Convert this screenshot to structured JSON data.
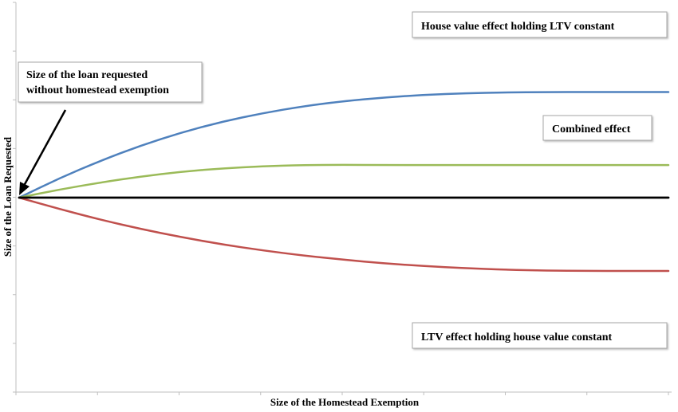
{
  "chart_data": {
    "type": "line",
    "title": "",
    "xlabel": "Size of the Homestead Exemption",
    "ylabel": "Size of the Loan Requested",
    "xlim": [
      0,
      8
    ],
    "ylim": [
      -4,
      4
    ],
    "grid": false,
    "x": [
      0,
      0.5,
      1,
      1.5,
      2,
      2.5,
      3,
      3.5,
      4,
      4.5,
      5,
      5.5,
      6,
      6.5,
      7,
      7.5,
      8
    ],
    "series": [
      {
        "name": "House value effect holding LTV constant",
        "color": "#4f81bd",
        "values": [
          0,
          0.65,
          1.22,
          1.73,
          2.16,
          2.52,
          2.8,
          3.03,
          3.2,
          3.32,
          3.41,
          3.46,
          3.49,
          3.5,
          3.5,
          3.5,
          3.5
        ]
      },
      {
        "name": "Combined effect",
        "color": "#9bbb59",
        "values": [
          0,
          0.27,
          0.5,
          0.7,
          0.86,
          0.97,
          1.04,
          1.08,
          1.09,
          1.08,
          1.08,
          1.08,
          1.08,
          1.08,
          1.08,
          1.08,
          1.08
        ]
      },
      {
        "name": "LTV effect holding house value constant",
        "color": "#c0504d",
        "values": [
          0,
          -0.38,
          -0.73,
          -1.04,
          -1.31,
          -1.55,
          -1.75,
          -1.92,
          -2.06,
          -2.18,
          -2.27,
          -2.34,
          -2.39,
          -2.42,
          -2.43,
          -2.43,
          -2.43
        ]
      },
      {
        "name": "",
        "color": "#000000",
        "values": [
          0,
          0,
          0,
          0,
          0,
          0,
          0,
          0,
          0,
          0,
          0,
          0,
          0,
          0,
          0,
          0,
          0
        ]
      }
    ],
    "annotations": [
      {
        "lines": [
          "House value effect holding LTV constant"
        ]
      },
      {
        "lines": [
          "Combined effect"
        ]
      },
      {
        "lines": [
          "LTV effect holding house value constant"
        ]
      },
      {
        "lines": [
          "Size of the loan requested",
          "without homestead exemption"
        ]
      }
    ]
  }
}
